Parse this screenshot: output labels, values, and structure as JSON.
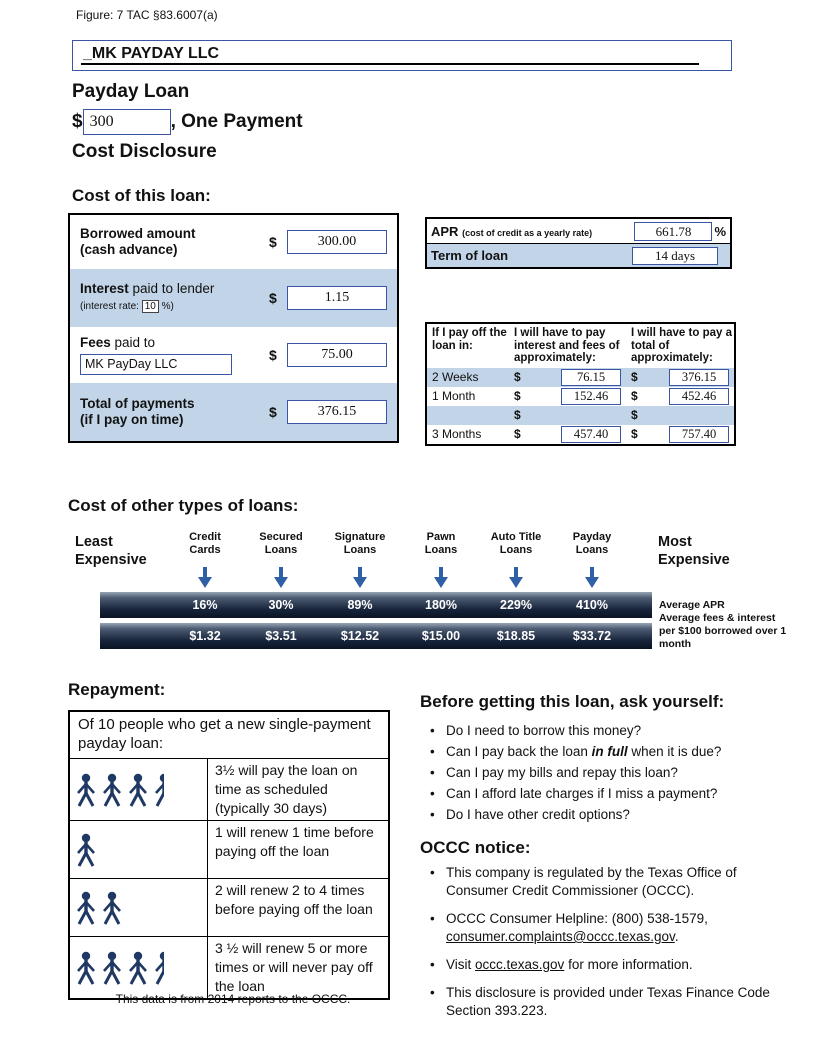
{
  "figure_ref": "Figure: 7 TAC §83.6007(a)",
  "colors": {
    "accent_navy": "#1f3864",
    "input_border_blue": "#3a55a4",
    "row_light_blue": "#c2d5e8",
    "arrow_blue": "#2f5fa5"
  },
  "header": {
    "company_name": "_MK PAYDAY LLC",
    "product_title": "Payday Loan",
    "amount_currency": "$",
    "amount_value": "300",
    "amount_suffix": ", One Payment",
    "subtitle": "Cost Disclosure"
  },
  "cost_section": {
    "heading": "Cost of this loan:",
    "table": {
      "row1": {
        "label": "Borrowed amount",
        "sublabel": "(cash advance)",
        "currency": "$",
        "value": "300.00"
      },
      "row2": {
        "label_bold": "Interest",
        "label_rest": " paid to lender",
        "rate_prefix": "(interest rate:",
        "rate_value": "10",
        "rate_suffix": "%)",
        "currency": "$",
        "value": "1.15"
      },
      "row3": {
        "label_bold": "Fees",
        "label_rest": " paid to",
        "payee": "MK PayDay LLC",
        "currency": "$",
        "value": "75.00"
      },
      "row4": {
        "label": "Total of payments",
        "sublabel": "(if I pay on time)",
        "currency": "$",
        "value": "376.15"
      }
    },
    "apr_table": {
      "apr_label": "APR",
      "apr_note": "(cost of credit as a yearly rate)",
      "apr_value": "661.78",
      "apr_unit": "%",
      "term_label": "Term of loan",
      "term_value": "14 days"
    },
    "payoff_table": {
      "col1_header": "If I pay off the loan in:",
      "col2_header": "I will have to pay interest and fees of approximately:",
      "col3_header": "I will have to pay a total of approximately:",
      "currency": "$",
      "rows": [
        {
          "period": "2 Weeks",
          "interest": "76.15",
          "total": "376.15"
        },
        {
          "period": "1 Month",
          "interest": "152.46",
          "total": "452.46"
        },
        {
          "period": "",
          "interest": "",
          "total": ""
        },
        {
          "period": "3 Months",
          "interest": "457.40",
          "total": "757.40"
        }
      ]
    }
  },
  "comparison": {
    "heading": "Cost of other types of loans:",
    "least_label": "Least Expensive",
    "most_label": "Most Expensive",
    "categories": [
      "Credit Cards",
      "Secured Loans",
      "Signature Loans",
      "Pawn Loans",
      "Auto Title Loans",
      "Payday Loans"
    ],
    "apr_values": [
      "16%",
      "30%",
      "89%",
      "180%",
      "229%",
      "410%"
    ],
    "fee_values": [
      "$1.32",
      "$3.51",
      "$12.52",
      "$15.00",
      "$18.85",
      "$33.72"
    ],
    "apr_bar_label": "Average APR",
    "fee_bar_label": "Average fees & interest per $100 borrowed over 1 month"
  },
  "repayment": {
    "heading": "Repayment:",
    "table_title": "Of 10 people who get a new single-payment payday loan:",
    "rows": [
      {
        "icon_count": 3.5,
        "text": "3½ will pay the loan on time as scheduled (typically 30 days)"
      },
      {
        "icon_count": 1,
        "text": "1 will renew 1 time before paying off the loan"
      },
      {
        "icon_count": 2,
        "text": "2 will renew 2 to 4 times before paying off the loan"
      },
      {
        "icon_count": 3.5,
        "text": "3 ½ will renew 5 or more times or will never pay off the loan"
      }
    ],
    "caption": "This data is from 2014 reports to the OCCC."
  },
  "ask_section": {
    "heading": "Before getting this loan, ask yourself:",
    "bullets": [
      {
        "pre": "Do I need to borrow this money?",
        "em": "",
        "post": ""
      },
      {
        "pre": "Can I pay back the loan ",
        "em": "in full",
        "post": " when it is due?"
      },
      {
        "pre": "Can I pay my bills and repay this loan?",
        "em": "",
        "post": ""
      },
      {
        "pre": "Can I afford late charges if I miss a payment?",
        "em": "",
        "post": ""
      },
      {
        "pre": "Do I have other credit options?",
        "em": "",
        "post": ""
      }
    ]
  },
  "occc_section": {
    "heading": "OCCC notice:",
    "bullets": [
      {
        "pre": "This company is regulated by the Texas Office of Consumer Credit Commissioner (OCCC).",
        "link": "",
        "post": ""
      },
      {
        "pre": "OCCC Consumer Helpline: (800) 538-1579, ",
        "link": "consumer.complaints@occc.texas.gov",
        "post": "."
      },
      {
        "pre": "Visit ",
        "link": "occc.texas.gov",
        "post": " for more information."
      },
      {
        "pre": "This disclosure is provided under Texas Finance  Code Section 393.223.",
        "link": "",
        "post": ""
      }
    ]
  }
}
